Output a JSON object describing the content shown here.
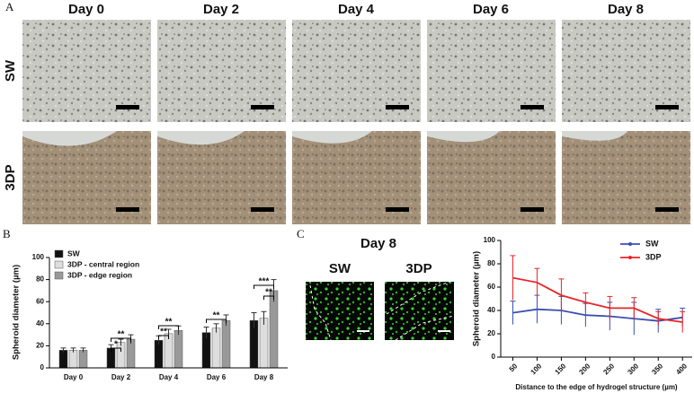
{
  "panels": {
    "a": "A",
    "b": "B",
    "c": "C"
  },
  "micrographs": {
    "columns": [
      "Day 0",
      "Day 2",
      "Day 4",
      "Day 6",
      "Day 8"
    ],
    "rows": [
      "SW",
      "3DP"
    ]
  },
  "fluorescence": {
    "title": "Day 8",
    "labels": [
      "SW",
      "3DP"
    ]
  },
  "chart_data": [
    {
      "type": "bar",
      "y_label": "Spheroid diameter (µm)",
      "categories": [
        "Day 0",
        "Day 2",
        "Day 4",
        "Day 6",
        "Day 8"
      ],
      "series": [
        {
          "name": "SW",
          "color": "#111111",
          "values": [
            16,
            18,
            25,
            32,
            43
          ],
          "errors": [
            2,
            3,
            4,
            5,
            7
          ]
        },
        {
          "name": "3DP - central region",
          "color": "#dddddd",
          "values": [
            16,
            23,
            31,
            36,
            45
          ],
          "errors": [
            2,
            3,
            4,
            4,
            6
          ]
        },
        {
          "name": "3DP - edge region",
          "color": "#999999",
          "values": [
            16,
            26,
            34,
            43,
            70
          ],
          "errors": [
            2,
            4,
            4,
            5,
            10
          ]
        }
      ],
      "ylim": [
        0,
        100
      ],
      "yticks": [
        0,
        20,
        40,
        60,
        80,
        100
      ],
      "legend": "top-left",
      "annotations": [
        "**",
        "*",
        "**",
        "**",
        "**",
        "***",
        "**"
      ]
    },
    {
      "type": "line",
      "y_label": "Spheroid diameter (µm)",
      "x_label": "Distance to the edge of hydrogel structure (µm)",
      "x": [
        50,
        100,
        150,
        200,
        250,
        300,
        350,
        400
      ],
      "series": [
        {
          "name": "SW",
          "color": "#3b4fb0",
          "values": [
            38,
            41,
            40,
            36,
            35,
            33,
            31,
            34
          ],
          "errors": [
            10,
            12,
            12,
            10,
            12,
            14,
            10,
            8
          ]
        },
        {
          "name": "3DP",
          "color": "#e8252a",
          "values": [
            68,
            64,
            53,
            47,
            42,
            42,
            33,
            30
          ],
          "errors": [
            19,
            12,
            14,
            8,
            10,
            9,
            6,
            9
          ]
        }
      ],
      "xlim": [
        25,
        420
      ],
      "xticks": [
        50,
        100,
        150,
        200,
        250,
        300,
        350,
        400
      ],
      "ylim": [
        0,
        100
      ],
      "yticks": [
        0,
        20,
        40,
        60,
        80,
        100
      ],
      "legend": "top-right"
    }
  ]
}
